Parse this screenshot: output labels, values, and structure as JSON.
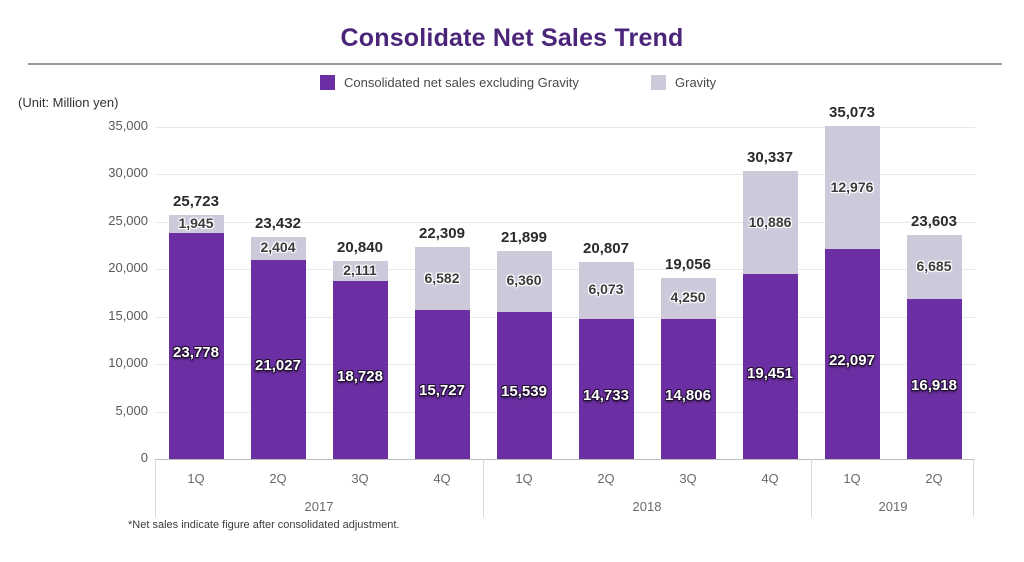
{
  "title": "Consolidate Net Sales Trend",
  "unit_label": "(Unit: Million yen)",
  "footnote": "*Net sales indicate figure after consolidated adjustment.",
  "colors": {
    "title": "#4b2579",
    "net_sales_bar": "#6c2fa3",
    "gravity_bar": "#cdc9db",
    "gridline": "#e9e9e9",
    "baseline": "#bdbdbd",
    "axis_text": "#595959"
  },
  "legend": {
    "items": [
      {
        "label": "Consolidated net sales excluding Gravity",
        "color": "#6c2fa3"
      },
      {
        "label": "Gravity",
        "color": "#cdc9db"
      }
    ]
  },
  "chart_data": {
    "type": "bar",
    "stacked": true,
    "title": "Consolidate Net Sales Trend",
    "ylabel": "(Unit: Million yen)",
    "ylim": [
      0,
      35000
    ],
    "y_ticks": [
      0,
      5000,
      10000,
      15000,
      20000,
      25000,
      30000,
      35000
    ],
    "grid": true,
    "legend_position": "top",
    "categories": [
      "1Q",
      "2Q",
      "3Q",
      "4Q",
      "1Q",
      "2Q",
      "3Q",
      "4Q",
      "1Q",
      "2Q"
    ],
    "year_groups": [
      {
        "label": "2017",
        "span": 4
      },
      {
        "label": "2018",
        "span": 4
      },
      {
        "label": "2019",
        "span": 2
      }
    ],
    "series": [
      {
        "name": "Consolidated net sales excluding Gravity",
        "color": "#6c2fa3",
        "values": [
          23778,
          21027,
          18728,
          15727,
          15539,
          14733,
          14806,
          19451,
          22097,
          16918
        ]
      },
      {
        "name": "Gravity",
        "color": "#cdc9db",
        "values": [
          1945,
          2404,
          2111,
          6582,
          6360,
          6073,
          4250,
          10886,
          12976,
          6685
        ]
      }
    ],
    "totals": [
      25723,
      23432,
      20840,
      22309,
      21899,
      20807,
      19056,
      30337,
      35073,
      23603
    ]
  }
}
